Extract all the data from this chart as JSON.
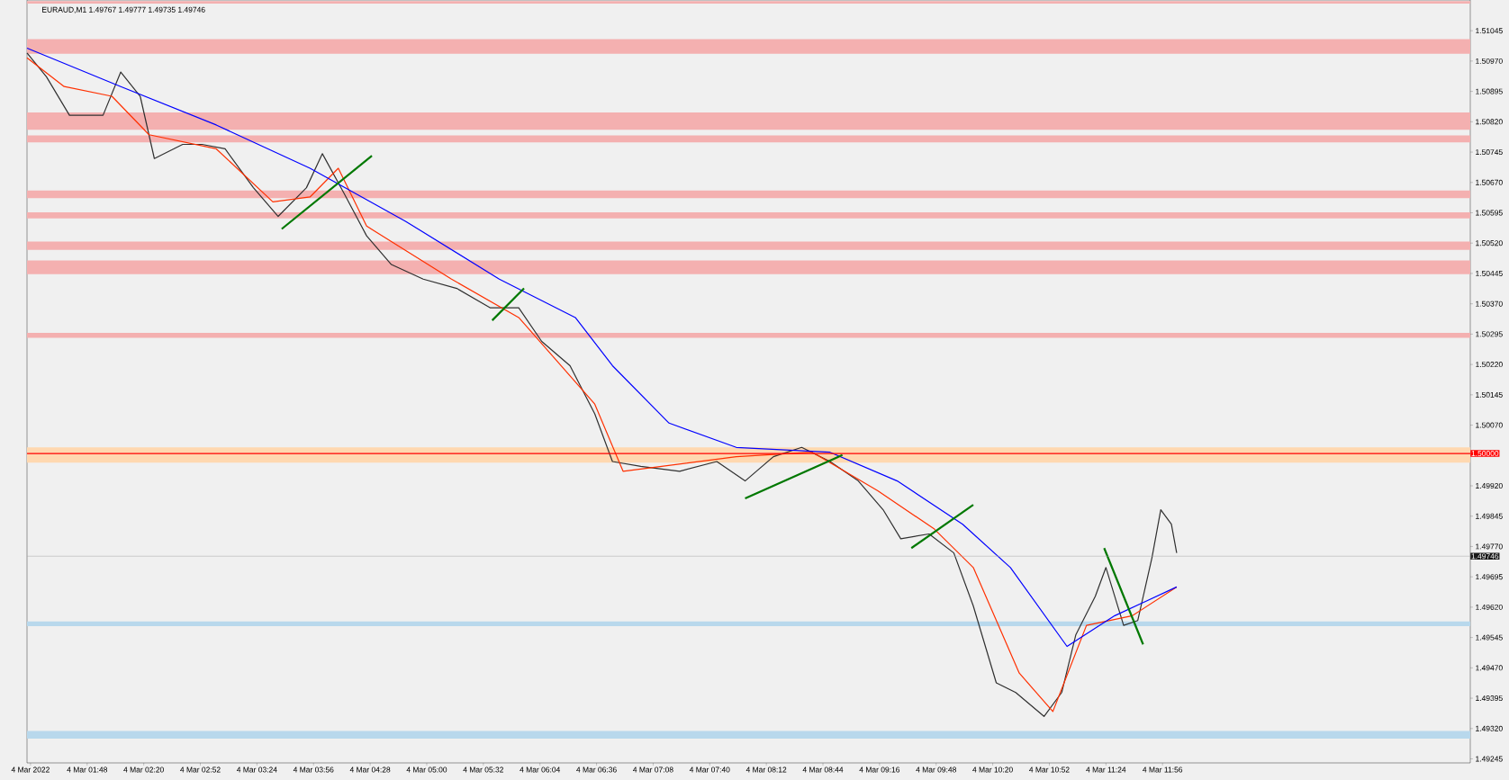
{
  "chart_data": {
    "type": "line",
    "title": "EURAUD,M1  1.49767 1.49777 1.49735 1.49746",
    "xlim": [
      "2022-03-04T01:14",
      "2022-03-04T14:50"
    ],
    "ylim": [
      1.49235,
      1.51121
    ],
    "xticks": [
      {
        "value": "2022-03-04T01:16",
        "label": "4 Mar 2022"
      },
      {
        "value": "2022-03-04T01:48",
        "label": "4 Mar 01:48"
      },
      {
        "value": "2022-03-04T02:20",
        "label": "4 Mar 02:20"
      },
      {
        "value": "2022-03-04T02:52",
        "label": "4 Mar 02:52"
      },
      {
        "value": "2022-03-04T03:24",
        "label": "4 Mar 03:24"
      },
      {
        "value": "2022-03-04T03:56",
        "label": "4 Mar 03:56"
      },
      {
        "value": "2022-03-04T04:28",
        "label": "4 Mar 04:28"
      },
      {
        "value": "2022-03-04T05:00",
        "label": "4 Mar 05:00"
      },
      {
        "value": "2022-03-04T05:32",
        "label": "4 Mar 05:32"
      },
      {
        "value": "2022-03-04T06:04",
        "label": "4 Mar 06:04"
      },
      {
        "value": "2022-03-04T06:36",
        "label": "4 Mar 06:36"
      },
      {
        "value": "2022-03-04T07:08",
        "label": "4 Mar 07:08"
      },
      {
        "value": "2022-03-04T07:40",
        "label": "4 Mar 07:40"
      },
      {
        "value": "2022-03-04T08:12",
        "label": "4 Mar 08:12"
      },
      {
        "value": "2022-03-04T08:44",
        "label": "4 Mar 08:44"
      },
      {
        "value": "2022-03-04T09:16",
        "label": "4 Mar 09:16"
      },
      {
        "value": "2022-03-04T09:48",
        "label": "4 Mar 09:48"
      },
      {
        "value": "2022-03-04T10:20",
        "label": "4 Mar 10:20"
      },
      {
        "value": "2022-03-04T10:52",
        "label": "4 Mar 10:52"
      },
      {
        "value": "2022-03-04T11:24",
        "label": "4 Mar 11:24"
      },
      {
        "value": "2022-03-04T11:56",
        "label": "4 Mar 11:56"
      }
    ],
    "yticks": [
      {
        "value": 1.51045,
        "label": "1.51045"
      },
      {
        "value": 1.5097,
        "label": "1.50970"
      },
      {
        "value": 1.50895,
        "label": "1.50895"
      },
      {
        "value": 1.5082,
        "label": "1.50820"
      },
      {
        "value": 1.50745,
        "label": "1.50745"
      },
      {
        "value": 1.5067,
        "label": "1.50670"
      },
      {
        "value": 1.50595,
        "label": "1.50595"
      },
      {
        "value": 1.5052,
        "label": "1.50520"
      },
      {
        "value": 1.50445,
        "label": "1.50445"
      },
      {
        "value": 1.5037,
        "label": "1.50370"
      },
      {
        "value": 1.50295,
        "label": "1.50295"
      },
      {
        "value": 1.5022,
        "label": "1.50220"
      },
      {
        "value": 1.50145,
        "label": "1.50145"
      },
      {
        "value": 1.5007,
        "label": "1.50070"
      },
      {
        "value": 1.4992,
        "label": "1.49920"
      },
      {
        "value": 1.49845,
        "label": "1.49845"
      },
      {
        "value": 1.4977,
        "label": "1.49770"
      },
      {
        "value": 1.49695,
        "label": "1.49695"
      },
      {
        "value": 1.4962,
        "label": "1.49620"
      },
      {
        "value": 1.49545,
        "label": "1.49545"
      },
      {
        "value": 1.4947,
        "label": "1.49470"
      },
      {
        "value": 1.49395,
        "label": "1.49395"
      },
      {
        "value": 1.4932,
        "label": "1.49320"
      },
      {
        "value": 1.49245,
        "label": "1.49245"
      }
    ],
    "bands": [
      {
        "axis": "y",
        "from": 1.51112,
        "to": 1.51118,
        "color": "#f4b0b0"
      },
      {
        "axis": "y",
        "from": 1.50988,
        "to": 1.51024,
        "color": "#f4b0b0"
      },
      {
        "axis": "y",
        "from": 1.508,
        "to": 1.50843,
        "color": "#f4b0b0"
      },
      {
        "axis": "y",
        "from": 1.50769,
        "to": 1.50786,
        "color": "#f4b0b0"
      },
      {
        "axis": "y",
        "from": 1.50631,
        "to": 1.5065,
        "color": "#f4b0b0"
      },
      {
        "axis": "y",
        "from": 1.50581,
        "to": 1.50596,
        "color": "#f4b0b0"
      },
      {
        "axis": "y",
        "from": 1.50503,
        "to": 1.50524,
        "color": "#f4b0b0"
      },
      {
        "axis": "y",
        "from": 1.50443,
        "to": 1.50477,
        "color": "#f4b0b0"
      },
      {
        "axis": "y",
        "from": 1.50286,
        "to": 1.50298,
        "color": "#f4b0b0"
      },
      {
        "axis": "y",
        "from": 1.49977,
        "to": 1.50015,
        "color": "#ffd8b0"
      },
      {
        "axis": "y",
        "from": 1.49573,
        "to": 1.49585,
        "color": "#b8d8ec"
      },
      {
        "axis": "y",
        "from": 1.49295,
        "to": 1.49314,
        "color": "#b8d8ec"
      }
    ],
    "ref_lines": [
      {
        "axis": "y",
        "value": 1.5,
        "label": "1.50000",
        "color": "#ff0000"
      },
      {
        "axis": "y",
        "value": 1.49746,
        "label": "1.49746",
        "color": "#a6a6a6"
      }
    ],
    "series": [
      {
        "color": "#303030",
        "x": [
          "2022-03-04T01:14",
          "2022-03-04T01:25",
          "2022-03-04T01:38",
          "2022-03-04T01:57",
          "2022-03-04T02:07",
          "2022-03-04T02:18",
          "2022-03-04T02:26",
          "2022-03-04T02:42",
          "2022-03-04T02:53",
          "2022-03-04T03:06",
          "2022-03-04T03:22",
          "2022-03-04T03:36",
          "2022-03-04T03:52",
          "2022-03-04T04:01",
          "2022-03-04T04:13",
          "2022-03-04T04:26",
          "2022-03-04T04:40",
          "2022-03-04T04:58",
          "2022-03-04T05:17",
          "2022-03-04T05:36",
          "2022-03-04T05:52",
          "2022-03-04T06:05",
          "2022-03-04T06:21",
          "2022-03-04T06:35",
          "2022-03-04T06:45",
          "2022-03-04T07:01",
          "2022-03-04T07:23",
          "2022-03-04T07:44",
          "2022-03-04T08:00",
          "2022-03-04T08:16",
          "2022-03-04T08:32",
          "2022-03-04T08:48",
          "2022-03-04T09:04",
          "2022-03-04T09:18",
          "2022-03-04T09:28",
          "2022-03-04T09:44",
          "2022-03-04T09:58",
          "2022-03-04T10:09",
          "2022-03-04T10:22",
          "2022-03-04T10:33",
          "2022-03-04T10:49",
          "2022-03-04T10:59",
          "2022-03-04T11:07",
          "2022-03-04T11:18",
          "2022-03-04T11:24",
          "2022-03-04T11:34",
          "2022-03-04T11:42",
          "2022-03-04T11:50",
          "2022-03-04T11:55",
          "2022-03-04T12:01",
          "2022-03-04T12:04"
        ],
        "values": [
          1.5099,
          1.50931,
          1.50836,
          1.50836,
          1.50943,
          1.50883,
          1.50729,
          1.50764,
          1.50764,
          1.50753,
          1.50657,
          1.50586,
          1.50657,
          1.50741,
          1.50645,
          1.50538,
          1.50467,
          1.50431,
          1.50408,
          1.5036,
          1.5036,
          1.50277,
          1.50217,
          1.50098,
          1.4998,
          1.49968,
          1.49956,
          1.4998,
          1.49932,
          1.49992,
          1.50015,
          1.4998,
          1.49932,
          1.49861,
          1.49789,
          1.49801,
          1.49754,
          1.49623,
          1.49433,
          1.49409,
          1.4935,
          1.49409,
          1.49552,
          1.49647,
          1.49718,
          1.49575,
          1.49587,
          1.49742,
          1.49861,
          1.49825,
          1.49754
        ]
      },
      {
        "color": "#ff3000",
        "x": [
          "2022-03-04T01:14",
          "2022-03-04T01:35",
          "2022-03-04T02:02",
          "2022-03-04T02:23",
          "2022-03-04T03:01",
          "2022-03-04T03:33",
          "2022-03-04T03:54",
          "2022-03-04T04:10",
          "2022-03-04T04:26",
          "2022-03-04T05:14",
          "2022-03-04T05:52",
          "2022-03-04T06:35",
          "2022-03-04T06:51",
          "2022-03-04T07:55",
          "2022-03-04T08:38",
          "2022-03-04T09:15",
          "2022-03-04T09:47",
          "2022-03-04T10:09",
          "2022-03-04T10:35",
          "2022-03-04T10:54",
          "2022-03-04T11:13",
          "2022-03-04T11:39",
          "2022-03-04T12:04"
        ],
        "values": [
          1.50978,
          1.50907,
          1.50883,
          1.50788,
          1.50753,
          1.50622,
          1.50634,
          1.50705,
          1.50562,
          1.50431,
          1.50336,
          1.50122,
          1.49956,
          1.49992,
          1.50003,
          1.49908,
          1.49813,
          1.49718,
          1.49457,
          1.49362,
          1.49575,
          1.49599,
          1.4967
        ]
      },
      {
        "color": "#0000ff",
        "x": [
          "2022-03-04T01:14",
          "2022-03-04T02:07",
          "2022-03-04T03:01",
          "2022-03-04T03:54",
          "2022-03-04T04:48",
          "2022-03-04T05:41",
          "2022-03-04T06:24",
          "2022-03-04T06:45",
          "2022-03-04T07:17",
          "2022-03-04T07:55",
          "2022-03-04T08:48",
          "2022-03-04T09:26",
          "2022-03-04T10:03",
          "2022-03-04T10:30",
          "2022-03-04T11:02",
          "2022-03-04T11:29",
          "2022-03-04T12:04"
        ],
        "values": [
          1.51002,
          1.50907,
          1.50812,
          1.50705,
          1.50574,
          1.50431,
          1.50336,
          1.50217,
          1.50075,
          1.50015,
          1.50003,
          1.49932,
          1.49825,
          1.49718,
          1.49523,
          1.49599,
          1.4967
        ]
      },
      {
        "color": "#007800",
        "x": [
          "2022-03-04T03:38",
          "2022-03-04T04:29"
        ],
        "values": [
          1.50555,
          1.50736
        ]
      },
      {
        "color": "#007800",
        "x": [
          "2022-03-04T05:37",
          "2022-03-04T05:55"
        ],
        "values": [
          1.50329,
          1.50408
        ]
      },
      {
        "color": "#007800",
        "x": [
          "2022-03-04T08:00",
          "2022-03-04T08:55"
        ],
        "values": [
          1.49889,
          1.49996
        ]
      },
      {
        "color": "#007800",
        "x": [
          "2022-03-04T09:34",
          "2022-03-04T10:09"
        ],
        "values": [
          1.49766,
          1.49873
        ]
      },
      {
        "color": "#007800",
        "x": [
          "2022-03-04T11:23",
          "2022-03-04T11:45"
        ],
        "values": [
          1.49766,
          1.49528
        ]
      }
    ]
  }
}
